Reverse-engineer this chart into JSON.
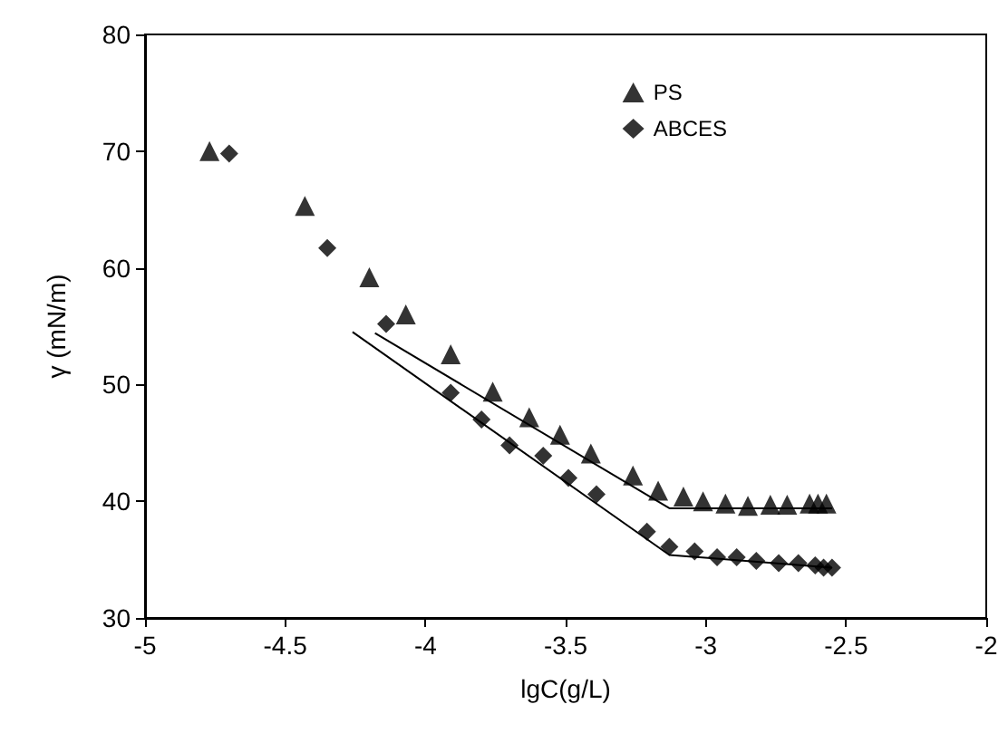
{
  "chart_data": {
    "type": "scatter",
    "xlabel": "lgC(g/L)",
    "ylabel": "γ (mN/m)",
    "xlim": [
      -5,
      -2
    ],
    "xticks": [
      -5,
      -4.5,
      -4,
      -3.5,
      -3,
      -2.5,
      -2
    ],
    "ylim": [
      30,
      80
    ],
    "yticks": [
      30,
      40,
      50,
      60,
      70,
      80
    ],
    "grid": false,
    "legend": "top right",
    "series": [
      {
        "name": "PS",
        "color": "#000000",
        "marker": "triangle",
        "x": [
          -4.77,
          -4.43,
          -4.2,
          -4.07,
          -3.91,
          -3.76,
          -3.63,
          -3.52,
          -3.41,
          -3.26,
          -3.17,
          -3.08,
          -3.01,
          -2.93,
          -2.85,
          -2.77,
          -2.71,
          -2.63,
          -2.6,
          -2.57
        ],
        "values": [
          70.0,
          65.3,
          59.2,
          56.0,
          52.6,
          49.4,
          47.2,
          45.7,
          44.1,
          42.2,
          40.9,
          40.4,
          40.0,
          39.8,
          39.6,
          39.7,
          39.7,
          39.8,
          39.8,
          39.8
        ]
      },
      {
        "name": "ABCES",
        "color": "#000000",
        "marker": "diamond",
        "x": [
          -4.7,
          -4.35,
          -4.14,
          -3.91,
          -3.8,
          -3.7,
          -3.58,
          -3.49,
          -3.39,
          -3.21,
          -3.13,
          -3.04,
          -2.96,
          -2.89,
          -2.82,
          -2.74,
          -2.67,
          -2.61,
          -2.58,
          -2.55
        ],
        "values": [
          69.8,
          61.7,
          55.2,
          49.3,
          47.0,
          44.8,
          43.9,
          42.0,
          40.6,
          37.4,
          36.1,
          35.7,
          35.2,
          35.2,
          34.9,
          34.7,
          34.7,
          34.5,
          34.3,
          34.3
        ]
      },
      {
        "type": "line",
        "color": "#000000",
        "marker": "none",
        "x": [
          -4.18,
          -3.13,
          -2.55
        ],
        "values": [
          54.4,
          39.4,
          39.4
        ]
      },
      {
        "type": "line",
        "color": "#000000",
        "marker": "none",
        "x": [
          -4.26,
          -3.13,
          -2.55
        ],
        "values": [
          54.5,
          35.4,
          34.3
        ]
      }
    ]
  }
}
